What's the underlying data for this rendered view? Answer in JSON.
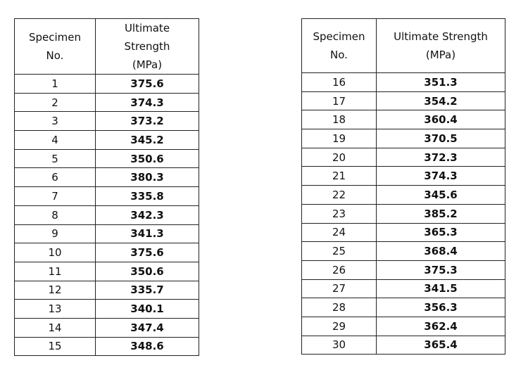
{
  "tables": [
    {
      "headers": [
        "Specimen No.",
        "Ultimate Strength (MPa)"
      ],
      "rows": [
        [
          1,
          375.6
        ],
        [
          2,
          374.3
        ],
        [
          3,
          373.2
        ],
        [
          4,
          345.2
        ],
        [
          5,
          350.6
        ],
        [
          6,
          380.3
        ],
        [
          7,
          335.8
        ],
        [
          8,
          342.3
        ],
        [
          9,
          341.3
        ],
        [
          10,
          375.6
        ],
        [
          11,
          350.6
        ],
        [
          12,
          335.7
        ],
        [
          13,
          340.1
        ],
        [
          14,
          347.4
        ],
        [
          15,
          348.6
        ]
      ]
    },
    {
      "headers": [
        "Specimen No.",
        "Ultimate Strength (MPa)"
      ],
      "rows": [
        [
          16,
          351.3
        ],
        [
          17,
          354.2
        ],
        [
          18,
          360.4
        ],
        [
          19,
          370.5
        ],
        [
          20,
          372.3
        ],
        [
          21,
          374.3
        ],
        [
          22,
          345.6
        ],
        [
          23,
          385.2
        ],
        [
          24,
          365.3
        ],
        [
          25,
          368.4
        ],
        [
          26,
          375.3
        ],
        [
          27,
          341.5
        ],
        [
          28,
          356.3
        ],
        [
          29,
          362.4
        ],
        [
          30,
          365.4
        ]
      ]
    }
  ]
}
